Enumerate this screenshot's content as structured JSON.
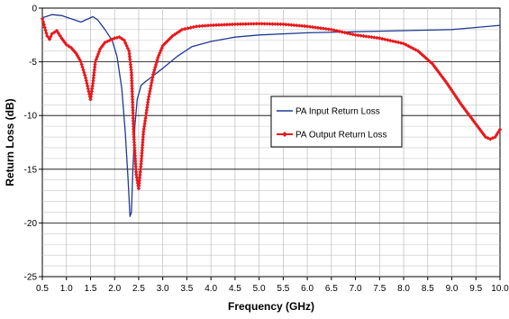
{
  "chart_data": {
    "type": "line",
    "title": "",
    "xlabel": "Frequency (GHz)",
    "ylabel": "Return Loss (dB)",
    "xlim": [
      0.5,
      10.0
    ],
    "ylim": [
      -25,
      0
    ],
    "x_ticks": [
      0.5,
      1.0,
      1.5,
      2.0,
      2.5,
      3.0,
      3.5,
      4.0,
      4.5,
      5.0,
      5.5,
      6.0,
      6.5,
      7.0,
      7.5,
      8.0,
      8.5,
      9.0,
      9.5,
      10.0
    ],
    "x_tick_labels": [
      "0.5",
      "1.0",
      "1.5",
      "2.0",
      "2.5",
      "3.0",
      "3.5",
      "4.0",
      "4.5",
      "5.0",
      "5.5",
      "6.0",
      "6.5",
      "7.0",
      "7.5",
      "8.0",
      "8.5",
      "9.0",
      "9.5",
      "10.0"
    ],
    "y_ticks": [
      0,
      -5,
      -10,
      -15,
      -20,
      -25
    ],
    "y_tick_labels": [
      "0",
      "-5",
      "-10",
      "-15",
      "-20",
      "-25"
    ],
    "grid": true,
    "legend_position": "center-right",
    "series": [
      {
        "name": "PA Input Return Loss",
        "color": "#1f3a93",
        "marker": "none",
        "x": [
          0.5,
          0.7,
          0.9,
          1.1,
          1.3,
          1.45,
          1.55,
          1.65,
          1.8,
          1.95,
          2.05,
          2.15,
          2.22,
          2.28,
          2.32,
          2.35,
          2.38,
          2.42,
          2.47,
          2.55,
          2.65,
          2.8,
          3.0,
          3.3,
          3.6,
          4.0,
          4.5,
          5.0,
          6.0,
          7.0,
          8.0,
          9.0,
          9.5,
          10.0
        ],
        "y": [
          -0.9,
          -0.6,
          -0.7,
          -1.0,
          -1.3,
          -1.0,
          -0.8,
          -1.1,
          -2.0,
          -3.0,
          -4.5,
          -7.5,
          -11.5,
          -16.0,
          -19.4,
          -19.0,
          -15.0,
          -11.0,
          -8.5,
          -7.2,
          -6.8,
          -6.3,
          -5.6,
          -4.5,
          -3.6,
          -3.1,
          -2.7,
          -2.5,
          -2.3,
          -2.2,
          -2.1,
          -2.0,
          -1.8,
          -1.6
        ]
      },
      {
        "name": "PA Output Return Loss",
        "color": "#e8191c",
        "marker": "diamond",
        "x": [
          0.5,
          0.55,
          0.6,
          0.65,
          0.7,
          0.8,
          0.9,
          1.0,
          1.1,
          1.2,
          1.3,
          1.4,
          1.45,
          1.5,
          1.55,
          1.6,
          1.7,
          1.8,
          1.9,
          2.0,
          2.1,
          2.2,
          2.3,
          2.35,
          2.4,
          2.45,
          2.5,
          2.55,
          2.6,
          2.7,
          2.8,
          2.9,
          3.0,
          3.2,
          3.4,
          3.7,
          4.0,
          4.5,
          5.0,
          5.5,
          6.0,
          6.5,
          7.0,
          7.5,
          8.0,
          8.3,
          8.6,
          8.9,
          9.2,
          9.5,
          9.7,
          9.8,
          9.9,
          10.0
        ],
        "y": [
          -1.0,
          -1.8,
          -2.6,
          -2.9,
          -2.4,
          -2.1,
          -2.8,
          -3.4,
          -3.7,
          -4.2,
          -5.0,
          -6.5,
          -7.5,
          -8.5,
          -7.0,
          -5.0,
          -3.8,
          -3.2,
          -3.0,
          -2.8,
          -2.7,
          -3.0,
          -4.0,
          -6.0,
          -12.0,
          -15.5,
          -16.8,
          -14.5,
          -11.5,
          -8.5,
          -6.2,
          -4.6,
          -3.5,
          -2.6,
          -2.0,
          -1.7,
          -1.6,
          -1.5,
          -1.45,
          -1.5,
          -1.7,
          -2.0,
          -2.5,
          -2.8,
          -3.3,
          -4.0,
          -5.2,
          -7.0,
          -9.0,
          -10.8,
          -12.0,
          -12.2,
          -12.0,
          -11.3
        ]
      }
    ]
  }
}
